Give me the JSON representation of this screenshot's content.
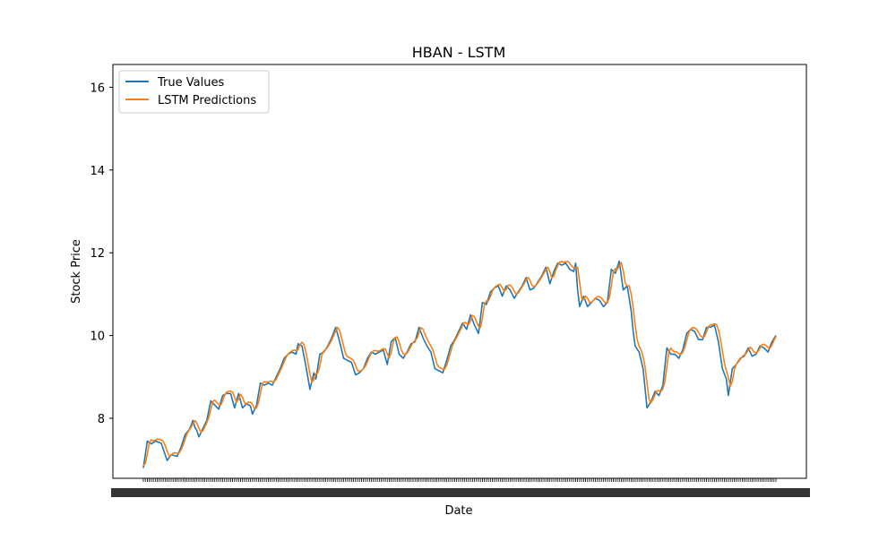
{
  "chart_data": {
    "type": "line",
    "title": "HBAN - LSTM",
    "xlabel": "Date",
    "ylabel": "Stock Price",
    "ylim": [
      6.55,
      16.55
    ],
    "yticks": [
      8,
      10,
      12,
      14,
      16
    ],
    "xtick_labels_note": "",
    "grid": false,
    "legend_position": "top-left",
    "x_count": 320,
    "series": [
      {
        "name": "True Values",
        "color": "#1f77b4",
        "anchors": [
          [
            0,
            6.8
          ],
          [
            2,
            7.45
          ],
          [
            4,
            7.38
          ],
          [
            6,
            7.45
          ],
          [
            9,
            7.4
          ],
          [
            12,
            6.98
          ],
          [
            14,
            7.12
          ],
          [
            17,
            7.08
          ],
          [
            19,
            7.3
          ],
          [
            21,
            7.6
          ],
          [
            23,
            7.72
          ],
          [
            24,
            7.82
          ],
          [
            25,
            7.95
          ],
          [
            26,
            7.78
          ],
          [
            27,
            7.7
          ],
          [
            28,
            7.55
          ],
          [
            30,
            7.75
          ],
          [
            32,
            7.95
          ],
          [
            34,
            8.42
          ],
          [
            36,
            8.32
          ],
          [
            38,
            8.22
          ],
          [
            40,
            8.55
          ],
          [
            42,
            8.6
          ],
          [
            44,
            8.6
          ],
          [
            46,
            8.25
          ],
          [
            48,
            8.6
          ],
          [
            50,
            8.25
          ],
          [
            52,
            8.35
          ],
          [
            54,
            8.3
          ],
          [
            55,
            8.1
          ],
          [
            57,
            8.3
          ],
          [
            59,
            8.85
          ],
          [
            61,
            8.8
          ],
          [
            63,
            8.85
          ],
          [
            65,
            8.8
          ],
          [
            67,
            9.0
          ],
          [
            69,
            9.2
          ],
          [
            71,
            9.45
          ],
          [
            73,
            9.55
          ],
          [
            75,
            9.6
          ],
          [
            77,
            9.55
          ],
          [
            78,
            9.8
          ],
          [
            80,
            9.75
          ],
          [
            82,
            9.25
          ],
          [
            84,
            8.7
          ],
          [
            86,
            9.1
          ],
          [
            87,
            8.95
          ],
          [
            89,
            9.55
          ],
          [
            91,
            9.6
          ],
          [
            93,
            9.75
          ],
          [
            95,
            9.95
          ],
          [
            97,
            10.2
          ],
          [
            99,
            9.85
          ],
          [
            101,
            9.45
          ],
          [
            103,
            9.4
          ],
          [
            105,
            9.35
          ],
          [
            106,
            9.2
          ],
          [
            107,
            9.05
          ],
          [
            109,
            9.1
          ],
          [
            111,
            9.2
          ],
          [
            113,
            9.45
          ],
          [
            115,
            9.6
          ],
          [
            117,
            9.55
          ],
          [
            119,
            9.6
          ],
          [
            121,
            9.65
          ],
          [
            123,
            9.3
          ],
          [
            125,
            9.85
          ],
          [
            127,
            9.95
          ],
          [
            129,
            9.55
          ],
          [
            131,
            9.45
          ],
          [
            133,
            9.6
          ],
          [
            135,
            9.8
          ],
          [
            137,
            9.85
          ],
          [
            139,
            10.2
          ],
          [
            141,
            9.95
          ],
          [
            143,
            9.75
          ],
          [
            145,
            9.6
          ],
          [
            147,
            9.2
          ],
          [
            149,
            9.15
          ],
          [
            151,
            9.1
          ],
          [
            153,
            9.4
          ],
          [
            155,
            9.75
          ],
          [
            157,
            9.9
          ],
          [
            159,
            10.1
          ],
          [
            161,
            10.3
          ],
          [
            163,
            10.15
          ],
          [
            165,
            10.5
          ],
          [
            167,
            10.25
          ],
          [
            169,
            10.05
          ],
          [
            171,
            10.8
          ],
          [
            173,
            10.75
          ],
          [
            175,
            11.05
          ],
          [
            177,
            11.15
          ],
          [
            179,
            11.2
          ],
          [
            181,
            10.95
          ],
          [
            183,
            11.2
          ],
          [
            185,
            11.1
          ],
          [
            187,
            10.9
          ],
          [
            189,
            11.05
          ],
          [
            191,
            11.2
          ],
          [
            193,
            11.4
          ],
          [
            195,
            11.1
          ],
          [
            197,
            11.15
          ],
          [
            199,
            11.3
          ],
          [
            201,
            11.45
          ],
          [
            203,
            11.65
          ],
          [
            205,
            11.25
          ],
          [
            207,
            11.55
          ],
          [
            209,
            11.75
          ],
          [
            211,
            11.7
          ],
          [
            213,
            11.75
          ],
          [
            215,
            11.6
          ],
          [
            217,
            11.55
          ],
          [
            218,
            11.75
          ],
          [
            219,
            11.1
          ],
          [
            220,
            10.7
          ],
          [
            222,
            10.95
          ],
          [
            224,
            10.7
          ],
          [
            226,
            10.8
          ],
          [
            228,
            10.9
          ],
          [
            230,
            10.85
          ],
          [
            232,
            10.7
          ],
          [
            234,
            10.8
          ],
          [
            236,
            11.6
          ],
          [
            238,
            11.5
          ],
          [
            240,
            11.8
          ],
          [
            242,
            11.1
          ],
          [
            244,
            11.2
          ],
          [
            246,
            10.6
          ],
          [
            247,
            10.1
          ],
          [
            248,
            9.75
          ],
          [
            250,
            9.6
          ],
          [
            252,
            9.2
          ],
          [
            254,
            8.25
          ],
          [
            256,
            8.4
          ],
          [
            258,
            8.65
          ],
          [
            260,
            8.55
          ],
          [
            262,
            8.8
          ],
          [
            264,
            9.7
          ],
          [
            266,
            9.55
          ],
          [
            268,
            9.55
          ],
          [
            270,
            9.45
          ],
          [
            272,
            9.65
          ],
          [
            274,
            10.05
          ],
          [
            276,
            10.15
          ],
          [
            278,
            10.1
          ],
          [
            280,
            9.9
          ],
          [
            282,
            9.9
          ],
          [
            284,
            10.2
          ],
          [
            286,
            10.2
          ],
          [
            288,
            10.25
          ],
          [
            290,
            9.85
          ],
          [
            292,
            9.2
          ],
          [
            294,
            8.95
          ],
          [
            295,
            8.55
          ],
          [
            297,
            9.2
          ],
          [
            299,
            9.3
          ],
          [
            301,
            9.45
          ],
          [
            303,
            9.5
          ],
          [
            305,
            9.7
          ],
          [
            307,
            9.5
          ],
          [
            309,
            9.55
          ],
          [
            311,
            9.75
          ],
          [
            313,
            9.7
          ],
          [
            315,
            9.6
          ],
          [
            317,
            9.85
          ],
          [
            319,
            10.0
          ]
        ]
      }
    ]
  },
  "legend": {
    "entries": [
      {
        "label": "True Values",
        "color": "#1f77b4"
      },
      {
        "label": "LSTM Predictions",
        "color": "#ff7f0e"
      }
    ]
  }
}
